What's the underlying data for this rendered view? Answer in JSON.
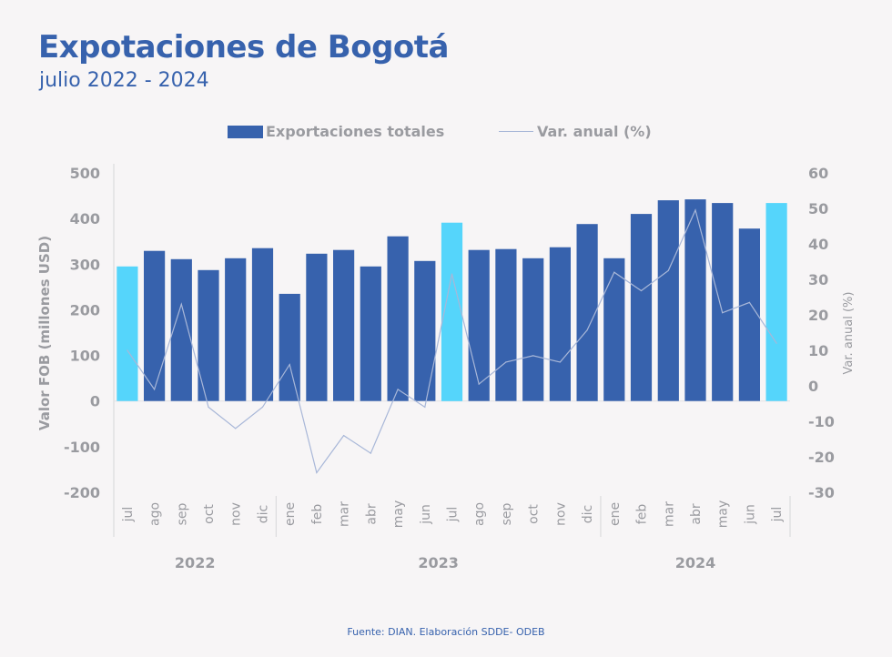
{
  "header": {
    "title": "Expotaciones de Bogotá",
    "subtitle": "julio 2022 - 2024"
  },
  "footer": {
    "source": "Fuente: DIAN. Elaboración SDDE- ODEB"
  },
  "colors": {
    "bar": "#3762ad",
    "bar_highlight": "#55d5fb",
    "line": "#a8b7d8",
    "text_muted": "#9a9ba0",
    "title": "#3762ad",
    "background": "#f7f5f6"
  },
  "chart_data": {
    "type": "bar",
    "title": "Expotaciones de Bogotá",
    "subtitle": "julio 2022 - 2024",
    "categories": [
      "jul",
      "ago",
      "sep",
      "oct",
      "nov",
      "dic",
      "ene",
      "feb",
      "mar",
      "abr",
      "may",
      "jun",
      "jul",
      "ago",
      "sep",
      "oct",
      "nov",
      "dic",
      "ene",
      "feb",
      "mar",
      "abr",
      "may",
      "jun",
      "jul"
    ],
    "groups": [
      {
        "label": "2022",
        "count": 6
      },
      {
        "label": "2023",
        "count": 12
      },
      {
        "label": "2024",
        "count": 7
      }
    ],
    "highlight_indices": [
      0,
      12,
      24
    ],
    "series": [
      {
        "name": "Exportaciones totales",
        "type": "bar",
        "axis": "left",
        "values": [
          295,
          329,
          311,
          287,
          313,
          335,
          235,
          323,
          331,
          295,
          361,
          307,
          391,
          331,
          333,
          313,
          337,
          388,
          313,
          410,
          440,
          442,
          434,
          378,
          434
        ]
      },
      {
        "name": "Var. anual (%)",
        "type": "line",
        "axis": "right",
        "values": [
          10,
          -1,
          23,
          -6,
          -12,
          -6,
          6,
          -24.5,
          -14,
          -19,
          -1,
          -6,
          31.5,
          0.5,
          6.7,
          8.5,
          6.7,
          15.7,
          32,
          26.8,
          32.5,
          49.5,
          20.6,
          23.5,
          12
        ]
      }
    ],
    "ylabel": "Valor FOB (millones USD)",
    "ylabel_right": "Var. anual (%)",
    "xlabel": "",
    "ylim": [
      -200,
      500
    ],
    "yticks": [
      500,
      400,
      300,
      200,
      100,
      0,
      -100,
      -200
    ],
    "ylim_right": [
      -30,
      60
    ],
    "yticks_right": [
      60,
      50,
      40,
      30,
      20,
      10,
      0,
      -10,
      -20,
      -30
    ],
    "legend": [
      "Exportaciones totales",
      "Var. anual (%)"
    ],
    "legend_position": "top",
    "grid": false
  }
}
